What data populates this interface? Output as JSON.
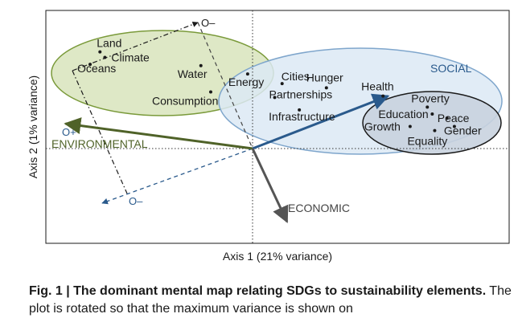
{
  "chart_data": {
    "type": "scatter",
    "xlabel": "Axis 1 (21% variance)",
    "ylabel": "Axis 2 (1% variance)",
    "points": [
      {
        "label": "Land",
        "x": -0.62,
        "y": 0.7
      },
      {
        "label": "Climate",
        "x": -0.6,
        "y": 0.66
      },
      {
        "label": "Oceans",
        "x": -0.66,
        "y": 0.61
      },
      {
        "label": "Water",
        "x": -0.21,
        "y": 0.6
      },
      {
        "label": "Consumption",
        "x": -0.17,
        "y": 0.41
      },
      {
        "label": "Energy",
        "x": -0.02,
        "y": 0.54
      },
      {
        "label": "Cities",
        "x": 0.12,
        "y": 0.47
      },
      {
        "label": "Hunger",
        "x": 0.3,
        "y": 0.44
      },
      {
        "label": "Partnerships",
        "x": 0.09,
        "y": 0.37
      },
      {
        "label": "Infrastructure",
        "x": 0.19,
        "y": 0.28
      },
      {
        "label": "Health",
        "x": 0.53,
        "y": 0.38
      },
      {
        "label": "Poverty",
        "x": 0.71,
        "y": 0.3
      },
      {
        "label": "Education",
        "x": 0.73,
        "y": 0.25
      },
      {
        "label": "Peace",
        "x": 0.79,
        "y": 0.22
      },
      {
        "label": "Growth",
        "x": 0.64,
        "y": 0.16
      },
      {
        "label": "Gender",
        "x": 0.82,
        "y": 0.16
      },
      {
        "label": "Equality",
        "x": 0.74,
        "y": 0.13
      }
    ],
    "vectors": [
      {
        "label": "ENVIRONMENTAL",
        "x": -0.76,
        "y": 0.18,
        "color": "#4f6228"
      },
      {
        "label": "SOCIAL",
        "x": 0.55,
        "y": 0.38,
        "color": "#2a5a8c"
      },
      {
        "label": "ECONOMIC",
        "x": 0.14,
        "y": -0.53,
        "color": "#555555"
      }
    ],
    "groups": [
      {
        "label": "ENVIRONMENTAL",
        "color": "#d8e4bc",
        "stroke": "#7a9a3a"
      },
      {
        "label": "SOCIAL",
        "color": "#dce9f5",
        "stroke": "#7fa6cc"
      },
      {
        "label": "",
        "color": "#c9d3df",
        "stroke": "#1a1a1a"
      }
    ],
    "axis_markers": [
      {
        "label": "O–",
        "color": "#1a1a1a"
      },
      {
        "label": "O+",
        "color": "#2a5a8c"
      },
      {
        "label": "O–",
        "color": "#2a5a8c"
      }
    ],
    "xlim": [
      -1.0,
      1.0
    ],
    "ylim": [
      -1.0,
      1.0
    ],
    "grid": false
  },
  "caption": {
    "bold": "Fig. 1 | The dominant mental map relating SDGs to sustainability elements.",
    "text": "The plot is rotated so that the maximum variance is shown on"
  }
}
